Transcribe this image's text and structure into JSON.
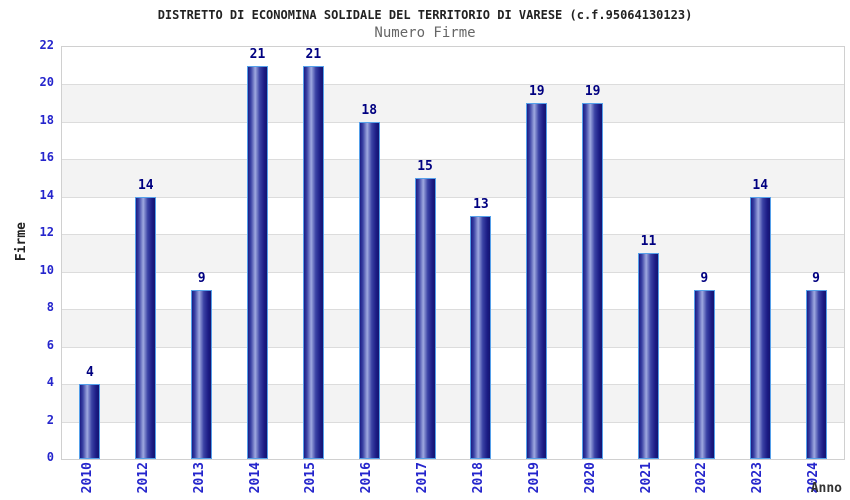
{
  "header": {
    "title": "DISTRETTO DI ECONOMINA SOLIDALE DEL TERRITORIO DI VARESE (c.f.95064130123)",
    "subtitle": "Numero Firme"
  },
  "chart_data": {
    "type": "bar",
    "title": "DISTRETTO DI ECONOMINA SOLIDALE DEL TERRITORIO DI VARESE (c.f.95064130123)",
    "subtitle": "Numero Firme",
    "categories": [
      "2010",
      "2012",
      "2013",
      "2014",
      "2015",
      "2016",
      "2017",
      "2018",
      "2019",
      "2020",
      "2021",
      "2022",
      "2023",
      "2024"
    ],
    "values": [
      4,
      14,
      9,
      21,
      21,
      18,
      15,
      13,
      19,
      19,
      11,
      9,
      14,
      9
    ],
    "xlabel": "Anno",
    "ylabel": "Firme",
    "ylim": [
      0,
      22
    ],
    "ytick_step": 2,
    "grid": "horizontal-bands",
    "legend": "none",
    "colors": {
      "axis_text": "#2525cc",
      "value_label": "#000080",
      "band_gray": "#f3f3f3",
      "band_white": "#ffffff",
      "gridline": "#dcdcdc",
      "plot_border": "#d0d0d0",
      "bar_border": "#55a0ea",
      "bar_dark": "#1c1c85",
      "bar_mid": "#3a42a4",
      "bar_light": "#9ea8e0",
      "bar_dark_right": "#141470"
    }
  }
}
